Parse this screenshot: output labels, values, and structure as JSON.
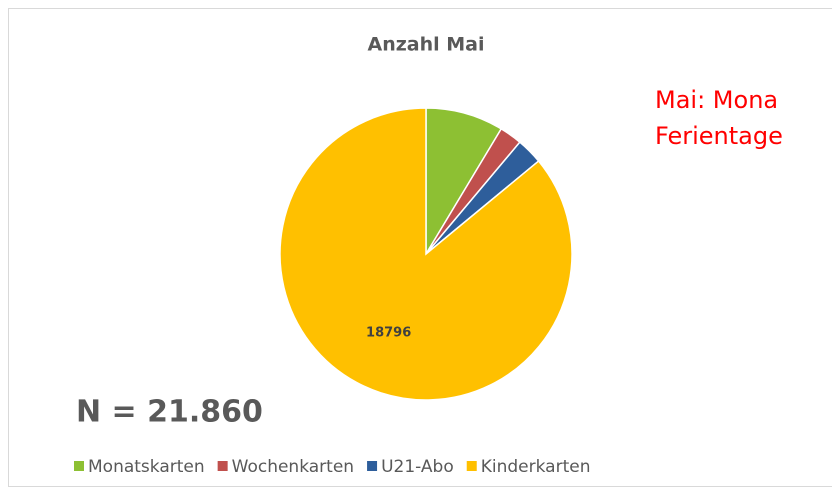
{
  "chart_data": {
    "type": "pie",
    "title": "Anzahl Mai",
    "categories": [
      "Monatskarten",
      "Wochenkarten",
      "U21-Abo",
      "Kinderkarten"
    ],
    "values": [
      1883,
      546,
      635,
      18796
    ],
    "value_labels": [
      null,
      null,
      null,
      "18796"
    ],
    "colors": [
      "#8dc033",
      "#c0504d",
      "#2e5e9b",
      "#ffc000"
    ],
    "annotations": [
      "Mai: Mona",
      "Ferientage",
      "N = 21.860"
    ],
    "legend": "bottom"
  }
}
